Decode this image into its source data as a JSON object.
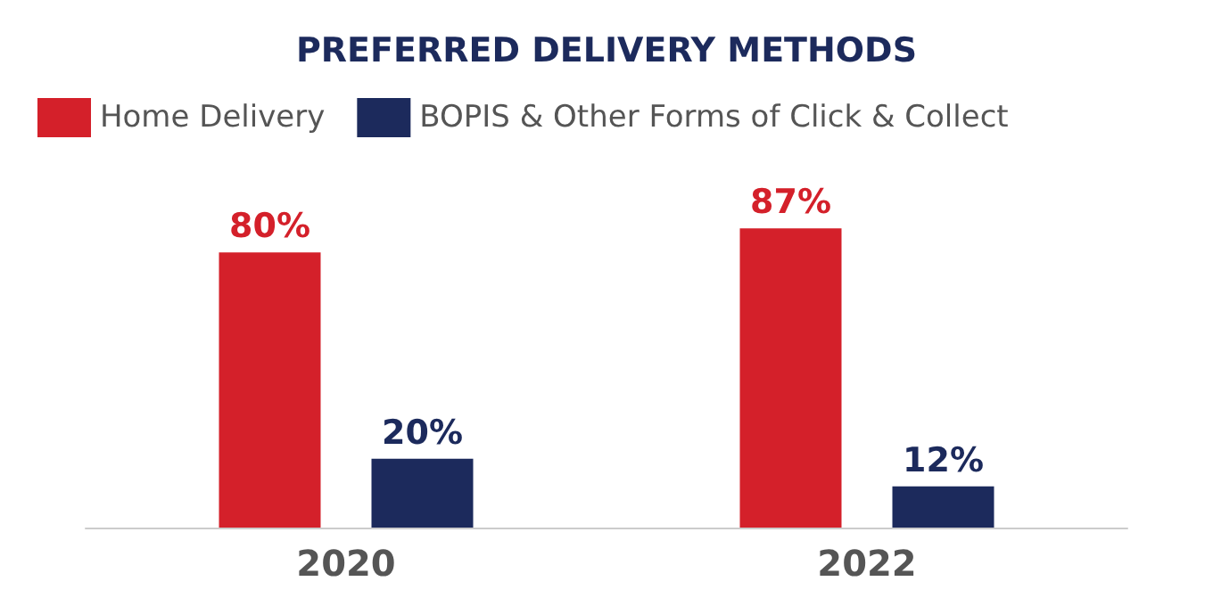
{
  "chart_data": {
    "type": "bar",
    "title": "PREFERRED DELIVERY METHODS",
    "categories": [
      "2020",
      "2022"
    ],
    "series": [
      {
        "name": "Home Delivery",
        "color": "#d4202a",
        "values": [
          80,
          87
        ],
        "value_labels": [
          "80%",
          "87%"
        ]
      },
      {
        "name": "BOPIS & Other Forms of Click & Collect",
        "color": "#1c2a5c",
        "values": [
          20,
          12
        ],
        "value_labels": [
          "20%",
          "12%"
        ]
      }
    ],
    "legend": "top left"
  }
}
